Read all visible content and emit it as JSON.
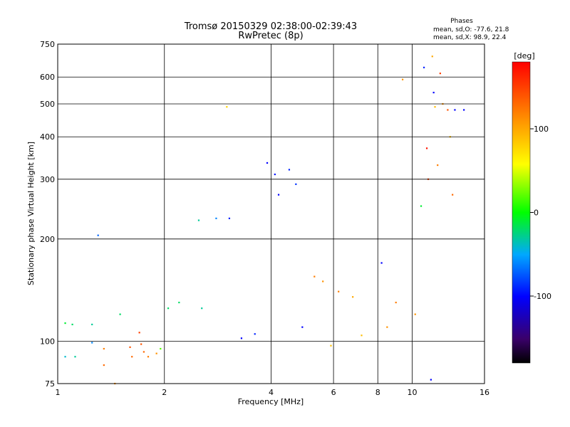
{
  "chart_data": {
    "type": "scatter",
    "title": "Tromsø 20150329 02:38:00-02:39:43",
    "subtitle": "RwPretec (8p)",
    "xlabel": "Frequency [MHz]",
    "ylabel": "Stationary phase Virtual Height [km]",
    "xscale": "log",
    "yscale": "log",
    "xlim": [
      1,
      16
    ],
    "ylim": [
      75,
      750
    ],
    "x_ticks": [
      1,
      2,
      4,
      6,
      8,
      10,
      16
    ],
    "x_tick_labels": [
      "1",
      "2",
      "4",
      "6",
      "8",
      "10",
      "16"
    ],
    "y_ticks": [
      75,
      100,
      200,
      300,
      400,
      500,
      600,
      750
    ],
    "y_tick_labels": [
      "75",
      "100",
      "200",
      "300",
      "400",
      "500",
      "600",
      "750"
    ],
    "grid": true,
    "stats": {
      "heading": "Phases",
      "line_o": "mean, sd,O:  -77.6, 21.8",
      "line_x": "mean, sd,X:  98.9, 22.4"
    },
    "colorbar": {
      "label": "[deg]",
      "range": [
        -180,
        180
      ],
      "ticks": [
        100,
        0,
        -100
      ],
      "tick_labels": [
        "100",
        "0",
        "-100"
      ],
      "colormap": "rainbow"
    },
    "series": [
      {
        "values": [
          {
            "x": 1.05,
            "y": 113,
            "phase": -10
          },
          {
            "x": 1.05,
            "y": 90,
            "phase": -40
          },
          {
            "x": 1.1,
            "y": 112,
            "phase": -20
          },
          {
            "x": 1.12,
            "y": 90,
            "phase": -30
          },
          {
            "x": 1.25,
            "y": 99,
            "phase": -60
          },
          {
            "x": 1.25,
            "y": 112,
            "phase": -30
          },
          {
            "x": 1.3,
            "y": 205,
            "phase": -70
          },
          {
            "x": 1.35,
            "y": 95,
            "phase": 120
          },
          {
            "x": 1.35,
            "y": 85,
            "phase": 130
          },
          {
            "x": 1.45,
            "y": 75,
            "phase": 110
          },
          {
            "x": 1.5,
            "y": 120,
            "phase": -20
          },
          {
            "x": 1.6,
            "y": 96,
            "phase": 140
          },
          {
            "x": 1.62,
            "y": 90,
            "phase": 130
          },
          {
            "x": 1.7,
            "y": 106,
            "phase": 150
          },
          {
            "x": 1.72,
            "y": 98,
            "phase": 140
          },
          {
            "x": 1.75,
            "y": 93,
            "phase": 130
          },
          {
            "x": 1.8,
            "y": 90,
            "phase": 120
          },
          {
            "x": 1.9,
            "y": 92,
            "phase": 110
          },
          {
            "x": 1.95,
            "y": 95,
            "phase": 20
          },
          {
            "x": 2.05,
            "y": 125,
            "phase": -20
          },
          {
            "x": 2.2,
            "y": 130,
            "phase": -20
          },
          {
            "x": 2.5,
            "y": 227,
            "phase": -30
          },
          {
            "x": 2.55,
            "y": 125,
            "phase": -30
          },
          {
            "x": 2.8,
            "y": 230,
            "phase": -60
          },
          {
            "x": 3.0,
            "y": 490,
            "phase": 80
          },
          {
            "x": 3.05,
            "y": 230,
            "phase": -90
          },
          {
            "x": 3.3,
            "y": 102,
            "phase": -100
          },
          {
            "x": 3.6,
            "y": 105,
            "phase": -90
          },
          {
            "x": 3.9,
            "y": 335,
            "phase": -100
          },
          {
            "x": 4.1,
            "y": 310,
            "phase": -95
          },
          {
            "x": 4.2,
            "y": 270,
            "phase": -100
          },
          {
            "x": 4.5,
            "y": 320,
            "phase": -90
          },
          {
            "x": 4.7,
            "y": 290,
            "phase": -85
          },
          {
            "x": 4.9,
            "y": 110,
            "phase": -100
          },
          {
            "x": 5.3,
            "y": 155,
            "phase": 120
          },
          {
            "x": 5.6,
            "y": 150,
            "phase": 110
          },
          {
            "x": 5.9,
            "y": 97,
            "phase": 90
          },
          {
            "x": 6.2,
            "y": 140,
            "phase": 120
          },
          {
            "x": 6.8,
            "y": 135,
            "phase": 100
          },
          {
            "x": 7.2,
            "y": 104,
            "phase": 90
          },
          {
            "x": 8.2,
            "y": 170,
            "phase": -100
          },
          {
            "x": 8.5,
            "y": 110,
            "phase": 110
          },
          {
            "x": 9.0,
            "y": 130,
            "phase": 120
          },
          {
            "x": 9.4,
            "y": 590,
            "phase": 110
          },
          {
            "x": 10.2,
            "y": 120,
            "phase": 110
          },
          {
            "x": 10.6,
            "y": 250,
            "phase": -10
          },
          {
            "x": 10.8,
            "y": 640,
            "phase": -90
          },
          {
            "x": 11.0,
            "y": 370,
            "phase": 170
          },
          {
            "x": 11.1,
            "y": 300,
            "phase": 150
          },
          {
            "x": 11.3,
            "y": 77,
            "phase": -100
          },
          {
            "x": 11.4,
            "y": 690,
            "phase": 100
          },
          {
            "x": 11.5,
            "y": 540,
            "phase": -100
          },
          {
            "x": 11.6,
            "y": 490,
            "phase": 90
          },
          {
            "x": 11.8,
            "y": 330,
            "phase": 120
          },
          {
            "x": 12.0,
            "y": 615,
            "phase": 150
          },
          {
            "x": 12.2,
            "y": 500,
            "phase": 110
          },
          {
            "x": 12.6,
            "y": 480,
            "phase": 140
          },
          {
            "x": 12.8,
            "y": 400,
            "phase": 90
          },
          {
            "x": 13.0,
            "y": 270,
            "phase": 130
          },
          {
            "x": 13.2,
            "y": 480,
            "phase": -100
          },
          {
            "x": 14.0,
            "y": 480,
            "phase": -100
          }
        ]
      }
    ]
  }
}
